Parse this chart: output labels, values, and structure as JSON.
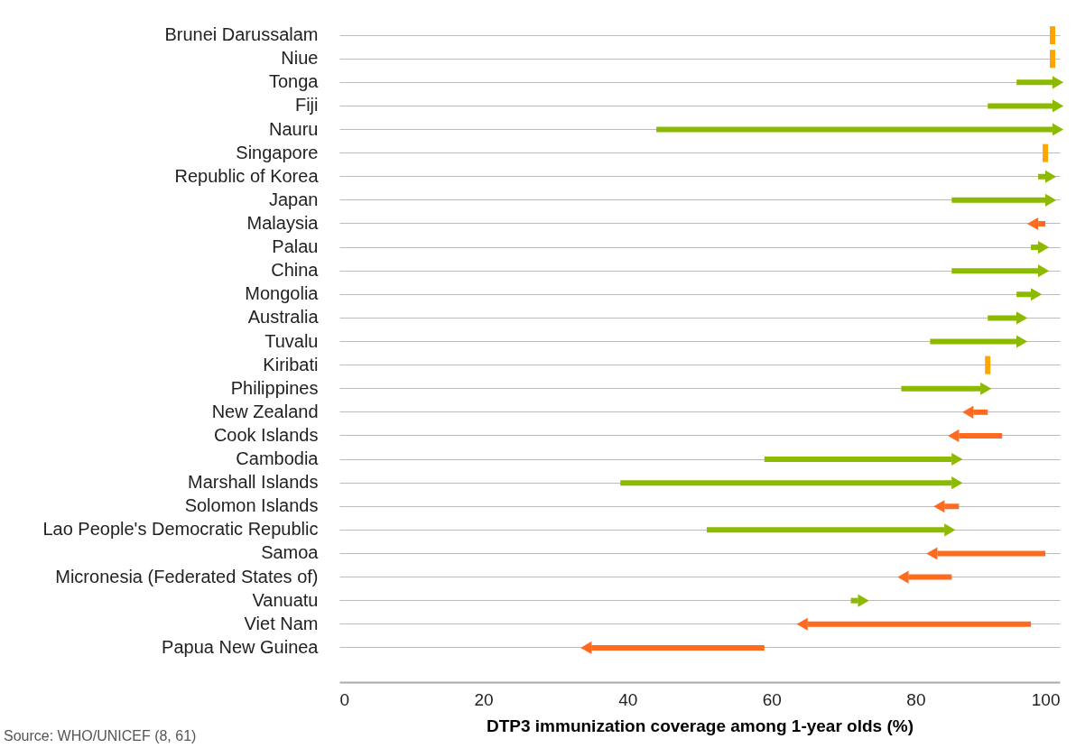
{
  "chart_data": {
    "type": "bar",
    "orientation": "horizontal",
    "categories": [
      "Brunei Darussalam",
      "Niue",
      "Tonga",
      "Fiji",
      "Nauru",
      "Singapore",
      "Republic of Korea",
      "Japan",
      "Malaysia",
      "Palau",
      "China",
      "Mongolia",
      "Australia",
      "Tuvalu",
      "Kiribati",
      "Philippines",
      "New Zealand",
      "Cook Islands",
      "Cambodia",
      "Marshall Islands",
      "Solomon Islands",
      "Lao People's Democratic Republic",
      "Samoa",
      "Micronesia (Federated States of)",
      "Vanuatu",
      "Viet Nam",
      "Papua New Guinea"
    ],
    "base": [
      99,
      99,
      94,
      90,
      44,
      98,
      97,
      85,
      98,
      96,
      85,
      94,
      90,
      82,
      90,
      78,
      90,
      92,
      59,
      39,
      86,
      51,
      98,
      85,
      71,
      96,
      59
    ],
    "values": [
      0,
      0,
      5,
      9,
      55,
      0,
      1,
      13,
      -1,
      1,
      12,
      2,
      4,
      12,
      0,
      11,
      -2,
      -6,
      26,
      46,
      -2,
      33,
      -15,
      -6,
      1,
      -31,
      -24
    ],
    "colors": [
      "#ffa500",
      "#ffa500",
      "#8cba00",
      "#8cba00",
      "#8cba00",
      "#ffa500",
      "#8cba00",
      "#8cba00",
      "#ff6a1f",
      "#8cba00",
      "#8cba00",
      "#8cba00",
      "#8cba00",
      "#8cba00",
      "#ffa500",
      "#8cba00",
      "#ff6a1f",
      "#ff6a1f",
      "#8cba00",
      "#8cba00",
      "#ff6a1f",
      "#8cba00",
      "#ff6a1f",
      "#ff6a1f",
      "#8cba00",
      "#ff6a1f",
      "#ff6a1f"
    ],
    "xlim": [
      0,
      100
    ],
    "xticks": [
      0,
      20,
      40,
      60,
      80,
      100
    ],
    "xlabel": "DTP3 immunization coverage among 1-year olds (%)",
    "grid": "y",
    "annotations": [
      "Source: WHO/UNICEF (8, 61)"
    ]
  }
}
